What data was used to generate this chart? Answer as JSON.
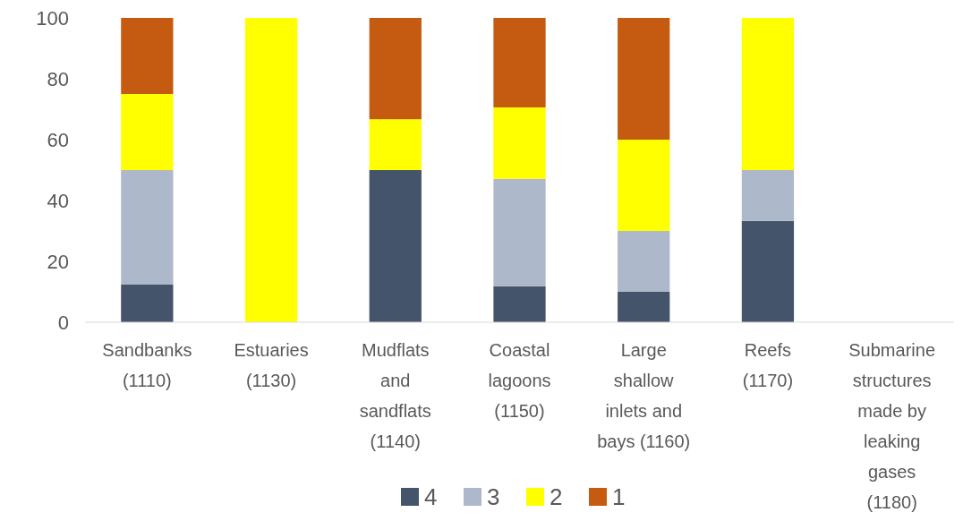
{
  "chart_data": {
    "type": "bar",
    "stacked": true,
    "categories": [
      "Sandbanks (1110)",
      "Estuaries (1130)",
      "Mudflats and sandflats (1140)",
      "Coastal lagoons (1150)",
      "Large shallow inlets and bays (1160)",
      "Reefs (1170)",
      "Submarine structures made by leaking gases (1180)"
    ],
    "series": [
      {
        "name": "4",
        "color": "#44546a",
        "values": [
          12.5,
          0,
          50,
          11.8,
          10,
          33.3,
          null
        ]
      },
      {
        "name": "3",
        "color": "#adb9ca",
        "values": [
          37.5,
          0,
          0,
          35.3,
          20,
          16.7,
          null
        ]
      },
      {
        "name": "2",
        "color": "#ffff00",
        "values": [
          25,
          100,
          16.7,
          23.5,
          30,
          50,
          null
        ]
      },
      {
        "name": "1",
        "color": "#c55a11",
        "values": [
          25,
          0,
          33.3,
          29.4,
          40,
          0,
          null
        ]
      }
    ],
    "ylim": [
      0,
      100
    ],
    "yticks": [
      0,
      20,
      40,
      60,
      80,
      100
    ],
    "grid": false,
    "legend": "bottom"
  }
}
